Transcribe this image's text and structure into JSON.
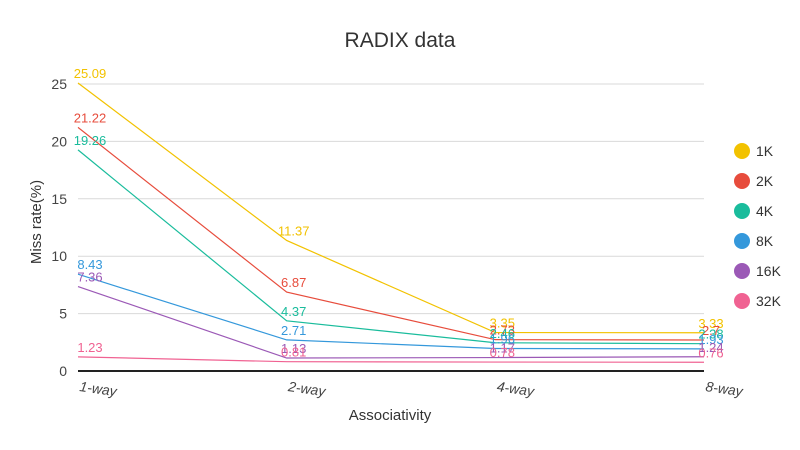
{
  "chart_data": {
    "type": "line",
    "title": "RADIX data",
    "xlabel": "Associativity",
    "ylabel": "Miss rate(%)",
    "categories": [
      "1-way",
      "2-way",
      "4-way",
      "8-way"
    ],
    "ylim": [
      0,
      25
    ],
    "yticks": [
      0,
      5,
      10,
      15,
      20,
      25
    ],
    "grid": true,
    "legend_position": "right",
    "series": [
      {
        "name": "1K",
        "color": "#F2C200",
        "values": [
          25.09,
          11.37,
          3.35,
          3.33
        ]
      },
      {
        "name": "2K",
        "color": "#E74C3C",
        "values": [
          21.22,
          6.87,
          2.73,
          2.7
        ]
      },
      {
        "name": "4K",
        "color": "#1ABC9C",
        "values": [
          19.26,
          4.37,
          2.46,
          2.38
        ]
      },
      {
        "name": "8K",
        "color": "#3498DB",
        "values": [
          8.43,
          2.71,
          1.96,
          1.93
        ]
      },
      {
        "name": "16K",
        "color": "#9B59B6",
        "values": [
          7.36,
          1.13,
          1.17,
          1.24
        ]
      },
      {
        "name": "32K",
        "color": "#F06292",
        "values": [
          1.23,
          0.81,
          0.78,
          0.76
        ]
      }
    ]
  }
}
